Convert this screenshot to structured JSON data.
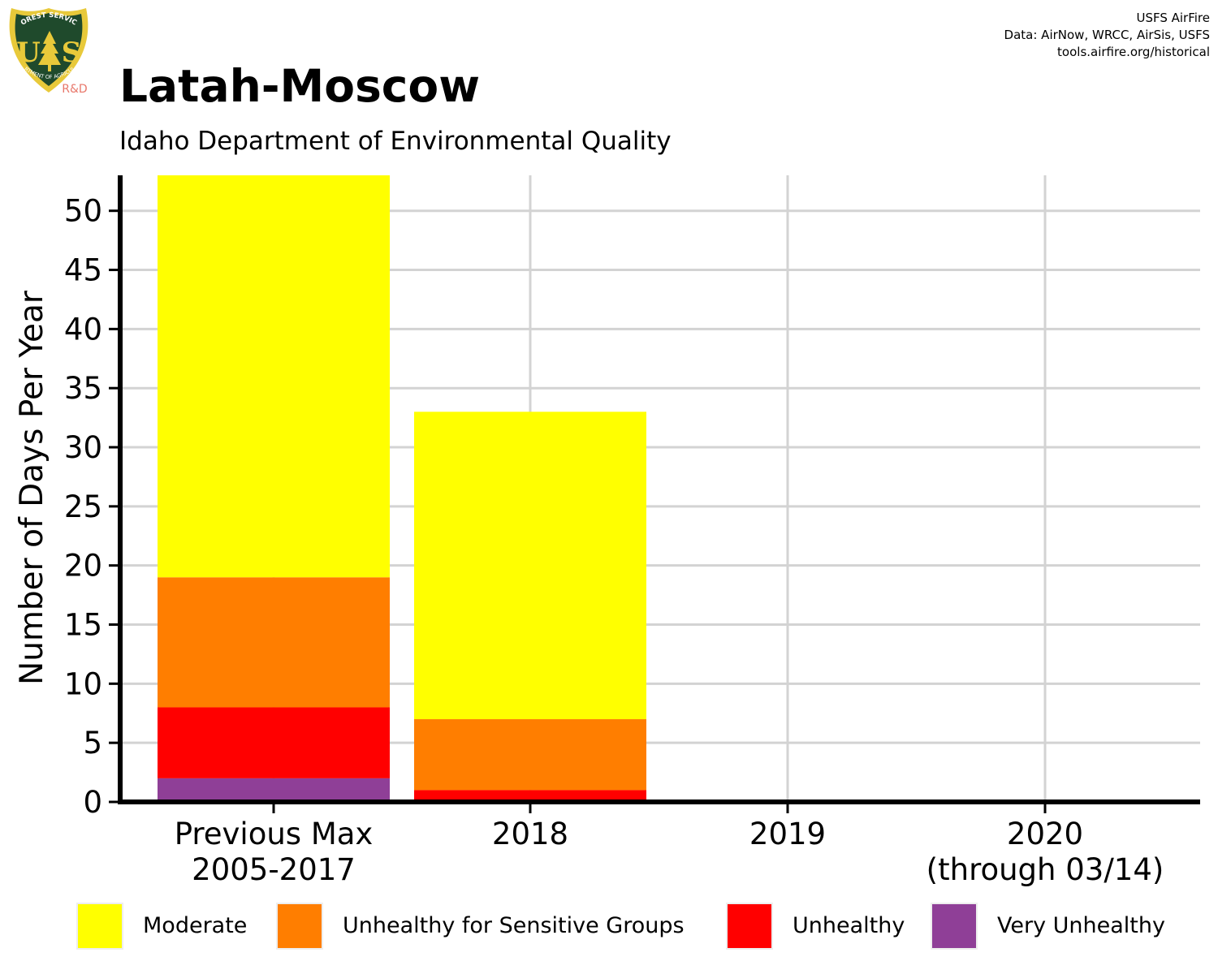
{
  "title": "Latah-Moscow",
  "subtitle": "Idaho Department of Environmental Quality",
  "credits": [
    "USFS AirFire",
    "Data: AirNow, WRCC, AirSis, USFS",
    "tools.airfire.org/historical"
  ],
  "logo": {
    "top_text": "FOREST SERVICE",
    "letters": "US",
    "bottom_text": "DEPARTMENT OF AGRICULTURE",
    "tag": "R&D"
  },
  "colors": {
    "moderate": "#FFFF00",
    "usg": "#FF7E00",
    "unhealthy": "#FF0000",
    "very_unhealthy": "#8F3F97",
    "grid": "#d3d3d3"
  },
  "chart_data": {
    "type": "bar",
    "stacked": true,
    "categories": [
      "Previous Max\n2005-2017",
      "2018",
      "2019",
      "2020\n(through 03/14)"
    ],
    "ylabel": "Number of Days Per Year",
    "xlabel": "",
    "ylim": [
      0,
      53
    ],
    "yticks": [
      0,
      5,
      10,
      15,
      20,
      25,
      30,
      35,
      40,
      45,
      50
    ],
    "grid": true,
    "legend_position": "bottom",
    "series": [
      {
        "name": "Very Unhealthy",
        "color": "#8F3F97",
        "values": [
          2,
          0,
          0,
          0
        ]
      },
      {
        "name": "Unhealthy",
        "color": "#FF0000",
        "values": [
          6,
          1,
          0,
          0
        ]
      },
      {
        "name": "Unhealthy for Sensitive Groups",
        "color": "#FF7E00",
        "values": [
          11,
          6,
          0,
          0
        ]
      },
      {
        "name": "Moderate",
        "color": "#FFFF00",
        "values": [
          34,
          26,
          0,
          0
        ]
      }
    ]
  },
  "legend": [
    {
      "label": "Moderate",
      "color": "#FFFF00"
    },
    {
      "label": "Unhealthy for Sensitive Groups",
      "color": "#FF7E00"
    },
    {
      "label": "Unhealthy",
      "color": "#FF0000"
    },
    {
      "label": "Very Unhealthy",
      "color": "#8F3F97"
    }
  ]
}
